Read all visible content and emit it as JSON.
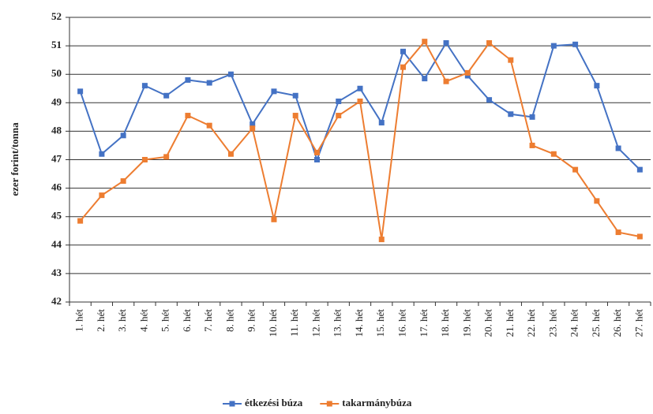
{
  "chart_data": {
    "type": "line",
    "y_label": "ezer forint/tonna",
    "categories": [
      "1. hét",
      "2. hét",
      "3. hét",
      "4. hét",
      "5. hét",
      "6. hét",
      "7. hét",
      "8. hét",
      "9. hét",
      "10. hét",
      "11. hét",
      "12. hét",
      "13. hét",
      "14. hét",
      "15. hét",
      "16. hét",
      "17. hét",
      "18. hét",
      "19. hét",
      "20. hét",
      "21. hét",
      "22. hét",
      "23. hét",
      "24. hét",
      "25. hét",
      "26. hét",
      "27. hét"
    ],
    "series": [
      {
        "name": "étkezési búza",
        "color": "#4472c4",
        "values": [
          49.4,
          47.2,
          47.85,
          49.6,
          49.25,
          49.8,
          49.7,
          50.0,
          48.25,
          49.4,
          49.25,
          47.0,
          49.05,
          49.5,
          48.3,
          50.8,
          49.85,
          51.1,
          49.95,
          49.1,
          48.6,
          48.5,
          51.0,
          51.05,
          49.6,
          47.4,
          46.65
        ]
      },
      {
        "name": "takarmánybúza",
        "color": "#ed7d31",
        "values": [
          44.85,
          45.75,
          46.25,
          47.0,
          47.1,
          48.55,
          48.2,
          47.2,
          48.1,
          44.9,
          48.55,
          47.25,
          48.55,
          49.05,
          44.2,
          50.25,
          51.15,
          49.75,
          50.05,
          51.1,
          50.5,
          47.5,
          47.2,
          46.65,
          45.55,
          44.45,
          44.3
        ]
      }
    ],
    "ylim": [
      42,
      52
    ],
    "yticks": [
      42,
      43,
      44,
      45,
      46,
      47,
      48,
      49,
      50,
      51,
      52
    ],
    "grid": true,
    "legend": "bottom"
  }
}
